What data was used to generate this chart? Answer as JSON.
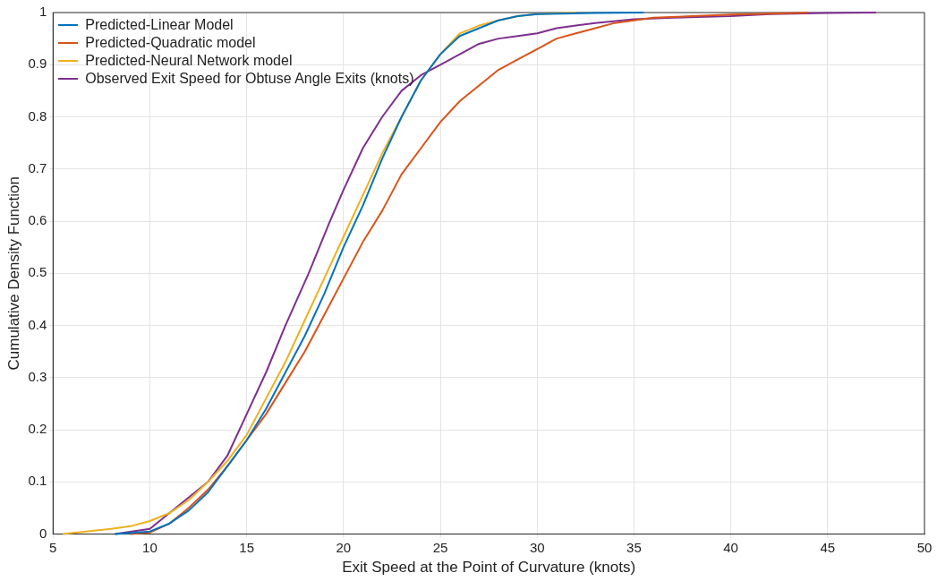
{
  "chart_data": {
    "type": "line",
    "xlabel": "Exit Speed at the Point of Curvature (knots)",
    "ylabel": "Cumulative Density Function",
    "xlim": [
      5,
      50
    ],
    "xticks": [
      5,
      10,
      15,
      20,
      25,
      30,
      35,
      40,
      45,
      50
    ],
    "ylim": [
      0,
      1
    ],
    "yticks": [
      0,
      0.1,
      0.2,
      0.3,
      0.4,
      0.5,
      0.6,
      0.7,
      0.8,
      0.9,
      1
    ],
    "grid": true,
    "legend": "top left",
    "marker": "none",
    "line_style": "solid",
    "series": [
      {
        "name": "Predicted-Linear Model",
        "color": "#0072bd",
        "x": [
          8.2,
          10,
          11,
          12,
          13,
          14,
          15,
          16,
          17,
          18,
          19,
          20,
          21,
          22,
          23,
          24,
          25,
          26,
          27,
          28,
          29,
          30,
          33,
          35.5
        ],
        "values": [
          0,
          0.005,
          0.02,
          0.045,
          0.08,
          0.13,
          0.18,
          0.24,
          0.31,
          0.38,
          0.46,
          0.55,
          0.63,
          0.72,
          0.8,
          0.87,
          0.92,
          0.955,
          0.97,
          0.985,
          0.993,
          0.997,
          0.999,
          1
        ]
      },
      {
        "name": "Predicted-Quadratic model",
        "color": "#d95319",
        "x": [
          9,
          10,
          11,
          12,
          13,
          14,
          15,
          16,
          17,
          18,
          19,
          20,
          21,
          22,
          23,
          24,
          25,
          26,
          27,
          28,
          29,
          30,
          31,
          32,
          33,
          34,
          35,
          36,
          38,
          40,
          42,
          44
        ],
        "values": [
          0,
          0.003,
          0.02,
          0.05,
          0.085,
          0.13,
          0.18,
          0.23,
          0.29,
          0.35,
          0.42,
          0.49,
          0.56,
          0.62,
          0.69,
          0.74,
          0.79,
          0.83,
          0.86,
          0.89,
          0.91,
          0.93,
          0.95,
          0.96,
          0.97,
          0.98,
          0.985,
          0.99,
          0.993,
          0.996,
          0.998,
          1
        ]
      },
      {
        "name": "Predicted-Neural Network model",
        "color": "#edb120",
        "x": [
          5.5,
          8,
          9,
          10,
          11,
          12,
          13,
          14,
          15,
          16,
          17,
          18,
          19,
          20,
          21,
          22,
          23,
          24,
          25,
          26,
          27,
          28,
          29,
          30,
          32
        ],
        "values": [
          0,
          0.01,
          0.015,
          0.025,
          0.04,
          0.065,
          0.1,
          0.14,
          0.19,
          0.26,
          0.33,
          0.41,
          0.49,
          0.57,
          0.65,
          0.73,
          0.8,
          0.87,
          0.92,
          0.96,
          0.975,
          0.985,
          0.993,
          0.997,
          1
        ]
      },
      {
        "name": "Observed Exit Speed for Obtuse Angle Exits (knots)",
        "color": "#7e2f8e",
        "x": [
          8.2,
          10,
          11,
          12,
          13,
          14,
          15,
          16,
          17,
          18.2,
          19.3,
          20,
          21,
          22,
          23,
          24,
          25,
          26,
          27,
          28,
          29,
          30,
          31,
          32,
          33,
          35,
          37,
          40,
          42,
          45,
          47.5
        ],
        "values": [
          0,
          0.01,
          0.04,
          0.07,
          0.1,
          0.15,
          0.23,
          0.31,
          0.4,
          0.5,
          0.6,
          0.66,
          0.74,
          0.8,
          0.85,
          0.88,
          0.9,
          0.92,
          0.94,
          0.95,
          0.955,
          0.96,
          0.97,
          0.975,
          0.98,
          0.987,
          0.99,
          0.993,
          0.997,
          0.999,
          1
        ]
      }
    ]
  }
}
